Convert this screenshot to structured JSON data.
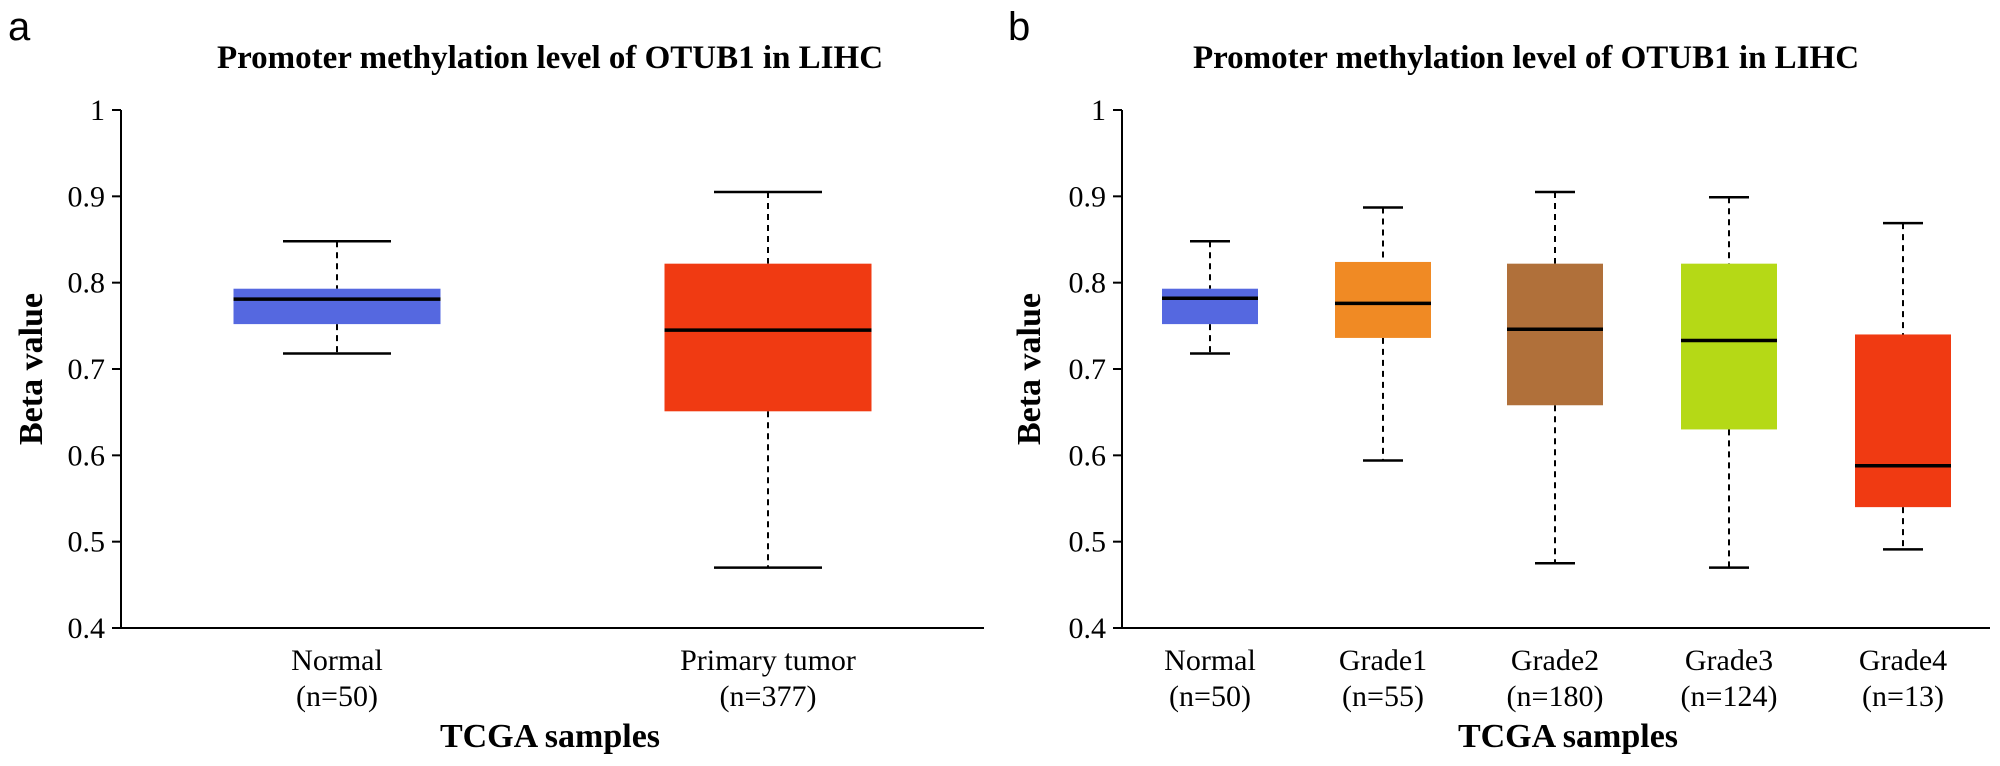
{
  "panel_labels": [
    "a",
    "b"
  ],
  "chart_data": [
    {
      "type": "boxplot",
      "panel": "a",
      "title": "Promoter methylation level of OTUB1 in LIHC",
      "xlabel": "TCGA samples",
      "ylabel": "Beta value",
      "ylim": [
        0.4,
        1.0
      ],
      "yticks": [
        "0.4",
        "0.5",
        "0.6",
        "0.7",
        "0.8",
        "0.9",
        "1"
      ],
      "groups": [
        {
          "name": "Normal",
          "n_label": "(n=50)",
          "color": "#5568e0",
          "min": 0.718,
          "q1": 0.752,
          "median": 0.781,
          "q3": 0.793,
          "max": 0.848
        },
        {
          "name": "Primary tumor",
          "n_label": "(n=377)",
          "color": "#f03a12",
          "min": 0.47,
          "q1": 0.651,
          "median": 0.745,
          "q3": 0.822,
          "max": 0.905
        }
      ]
    },
    {
      "type": "boxplot",
      "panel": "b",
      "title": "Promoter methylation level of OTUB1 in LIHC",
      "xlabel": "TCGA samples",
      "ylabel": "Beta value",
      "ylim": [
        0.4,
        1.0
      ],
      "yticks": [
        "0.4",
        "0.5",
        "0.6",
        "0.7",
        "0.8",
        "0.9",
        "1"
      ],
      "groups": [
        {
          "name": "Normal",
          "n_label": "(n=50)",
          "color": "#5568e0",
          "min": 0.718,
          "q1": 0.752,
          "median": 0.782,
          "q3": 0.793,
          "max": 0.848
        },
        {
          "name": "Grade1",
          "n_label": "(n=55)",
          "color": "#f08a24",
          "min": 0.594,
          "q1": 0.736,
          "median": 0.776,
          "q3": 0.824,
          "max": 0.887
        },
        {
          "name": "Grade2",
          "n_label": "(n=180)",
          "color": "#b0703a",
          "min": 0.475,
          "q1": 0.658,
          "median": 0.746,
          "q3": 0.822,
          "max": 0.905
        },
        {
          "name": "Grade3",
          "n_label": "(n=124)",
          "color": "#b5d916",
          "min": 0.47,
          "q1": 0.63,
          "median": 0.733,
          "q3": 0.822,
          "max": 0.899
        },
        {
          "name": "Grade4",
          "n_label": "(n=13)",
          "color": "#f03a12",
          "min": 0.491,
          "q1": 0.54,
          "median": 0.588,
          "q3": 0.74,
          "max": 0.869
        }
      ]
    }
  ]
}
